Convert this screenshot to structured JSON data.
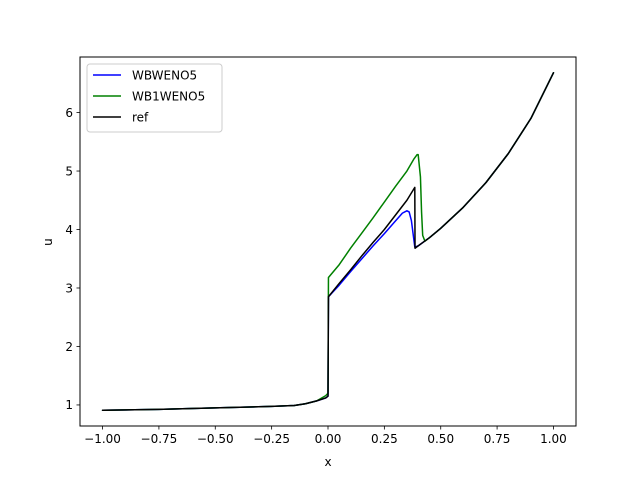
{
  "chart_data": {
    "type": "line",
    "title": "",
    "xlabel": "x",
    "ylabel": "u",
    "xlim": [
      -1.1,
      1.1
    ],
    "ylim": [
      0.64,
      6.95
    ],
    "xticks": [
      -1.0,
      -0.75,
      -0.5,
      -0.25,
      0.0,
      0.25,
      0.5,
      0.75,
      1.0
    ],
    "xtick_labels": [
      "−1.00",
      "−0.75",
      "−0.50",
      "−0.25",
      "0.00",
      "0.25",
      "0.50",
      "0.75",
      "1.00"
    ],
    "yticks": [
      1,
      2,
      3,
      4,
      5,
      6
    ],
    "ytick_labels": [
      "1",
      "2",
      "3",
      "4",
      "5",
      "6"
    ],
    "grid": false,
    "legend_position": "top-left",
    "series": [
      {
        "name": "WBWENO5",
        "color": "#0000ff",
        "points": [
          [
            -1.0,
            0.91
          ],
          [
            -0.75,
            0.925
          ],
          [
            -0.5,
            0.95
          ],
          [
            -0.25,
            0.975
          ],
          [
            -0.15,
            0.99
          ],
          [
            -0.1,
            1.02
          ],
          [
            -0.05,
            1.07
          ],
          [
            -0.01,
            1.12
          ],
          [
            0.0,
            1.15
          ],
          [
            0.002,
            2.85
          ],
          [
            0.05,
            3.05
          ],
          [
            0.1,
            3.28
          ],
          [
            0.15,
            3.5
          ],
          [
            0.2,
            3.72
          ],
          [
            0.25,
            3.93
          ],
          [
            0.3,
            4.15
          ],
          [
            0.33,
            4.28
          ],
          [
            0.35,
            4.32
          ],
          [
            0.36,
            4.3
          ],
          [
            0.37,
            4.15
          ],
          [
            0.38,
            3.85
          ],
          [
            0.385,
            3.7
          ],
          [
            0.4,
            3.72
          ],
          [
            0.45,
            3.86
          ],
          [
            0.5,
            4.02
          ],
          [
            0.6,
            4.38
          ],
          [
            0.7,
            4.8
          ],
          [
            0.8,
            5.3
          ],
          [
            0.9,
            5.9
          ],
          [
            1.0,
            6.68
          ]
        ]
      },
      {
        "name": "WB1WENO5",
        "color": "#008000",
        "points": [
          [
            -1.0,
            0.91
          ],
          [
            -0.75,
            0.925
          ],
          [
            -0.5,
            0.95
          ],
          [
            -0.25,
            0.975
          ],
          [
            -0.15,
            0.99
          ],
          [
            -0.1,
            1.02
          ],
          [
            -0.05,
            1.07
          ],
          [
            -0.01,
            1.16
          ],
          [
            0.0,
            1.2
          ],
          [
            0.002,
            3.18
          ],
          [
            0.05,
            3.4
          ],
          [
            0.1,
            3.68
          ],
          [
            0.15,
            3.94
          ],
          [
            0.2,
            4.2
          ],
          [
            0.25,
            4.47
          ],
          [
            0.3,
            4.74
          ],
          [
            0.35,
            5.0
          ],
          [
            0.38,
            5.2
          ],
          [
            0.395,
            5.28
          ],
          [
            0.4,
            5.28
          ],
          [
            0.41,
            4.9
          ],
          [
            0.415,
            4.3
          ],
          [
            0.42,
            3.9
          ],
          [
            0.43,
            3.8
          ],
          [
            0.45,
            3.86
          ],
          [
            0.5,
            4.02
          ],
          [
            0.6,
            4.38
          ],
          [
            0.7,
            4.8
          ],
          [
            0.8,
            5.3
          ],
          [
            0.9,
            5.9
          ],
          [
            1.0,
            6.68
          ]
        ]
      },
      {
        "name": "ref",
        "color": "#000000",
        "points": [
          [
            -1.0,
            0.91
          ],
          [
            -0.75,
            0.925
          ],
          [
            -0.5,
            0.95
          ],
          [
            -0.25,
            0.975
          ],
          [
            -0.15,
            0.99
          ],
          [
            -0.1,
            1.02
          ],
          [
            -0.05,
            1.07
          ],
          [
            -0.01,
            1.12
          ],
          [
            0.0,
            1.15
          ],
          [
            0.002,
            2.85
          ],
          [
            0.05,
            3.08
          ],
          [
            0.1,
            3.31
          ],
          [
            0.15,
            3.55
          ],
          [
            0.2,
            3.78
          ],
          [
            0.25,
            4.0
          ],
          [
            0.3,
            4.25
          ],
          [
            0.35,
            4.5
          ],
          [
            0.385,
            4.72
          ],
          [
            0.386,
            3.68
          ],
          [
            0.4,
            3.72
          ],
          [
            0.45,
            3.86
          ],
          [
            0.5,
            4.02
          ],
          [
            0.6,
            4.38
          ],
          [
            0.7,
            4.8
          ],
          [
            0.8,
            5.3
          ],
          [
            0.9,
            5.9
          ],
          [
            1.0,
            6.68
          ]
        ]
      }
    ]
  }
}
